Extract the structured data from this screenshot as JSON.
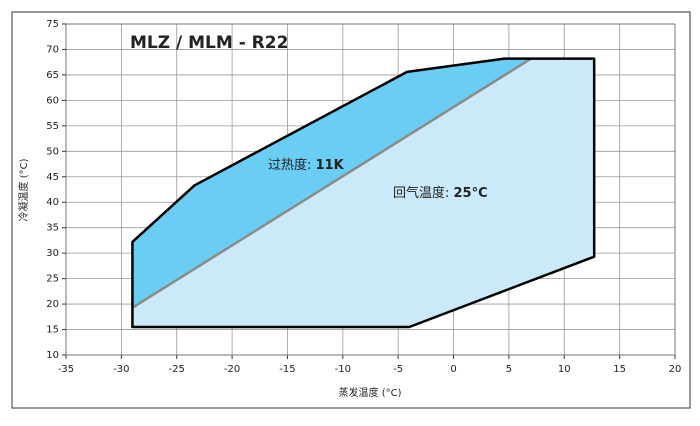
{
  "chart_data": {
    "type": "envelope",
    "title": "MLZ / MLM  -  R22",
    "xlabel": "蒸发温度 (°C)",
    "ylabel": "冷凝温度 (°C)",
    "xlim": [
      -35,
      20
    ],
    "ylim": [
      10,
      75
    ],
    "xticks": [
      -35,
      -30,
      -25,
      -20,
      -15,
      -10,
      -5,
      0,
      5,
      10,
      15,
      20
    ],
    "yticks": [
      10,
      15,
      20,
      25,
      30,
      35,
      40,
      45,
      50,
      55,
      60,
      65,
      70,
      75
    ],
    "grid": true,
    "series": [
      {
        "name": "回气温度: 25°C",
        "color": "#cbe9f9",
        "stroke": "#000000",
        "x": [
          -29,
          -4,
          12.7,
          12.7,
          4.6,
          -4.2,
          -23.4,
          -29
        ],
        "values": [
          15.5,
          15.5,
          29.3,
          68.2,
          68.2,
          65.6,
          43.3,
          32.2
        ]
      },
      {
        "name": "过热度: 11K",
        "color": "#6ccdf4",
        "stroke": "#000000",
        "x": [
          -29,
          -29,
          -23.4,
          -4.2,
          4.6,
          7
        ],
        "values": [
          19.3,
          32.2,
          43.3,
          65.6,
          68.2,
          68.2
        ]
      },
      {
        "name": "line",
        "color": "#8a8a8a",
        "x": [
          -29,
          7
        ],
        "values": [
          19.3,
          68.2
        ]
      }
    ],
    "annotations": [
      {
        "label": "过热度: ",
        "value": "11K"
      },
      {
        "label": "回气温度: ",
        "value": "25°C"
      }
    ]
  }
}
